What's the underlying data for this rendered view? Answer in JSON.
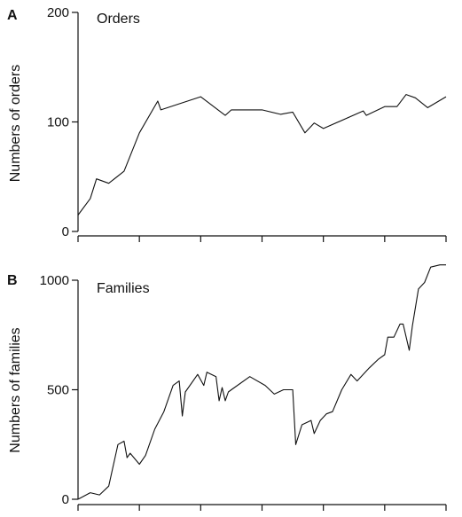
{
  "chart_data": [
    {
      "type": "line",
      "panel": "A",
      "title": "Orders",
      "xlabel": "",
      "ylabel": "Numbers of orders",
      "ylim": [
        0,
        200
      ],
      "yticks": [
        0,
        100,
        200
      ],
      "xticks": [
        0,
        1,
        2,
        3,
        4,
        5,
        6,
        7,
        8,
        9,
        10,
        11,
        12
      ],
      "xlim": [
        0,
        12
      ],
      "grid": false,
      "series": [
        {
          "x": [
            0,
            0.4,
            0.6,
            1.0,
            1.5,
            2.0,
            2.6,
            2.7,
            4.0,
            4.8,
            5.0,
            6.0,
            6.6,
            7.0,
            7.4,
            7.7,
            8.0,
            9.3,
            9.4,
            10.0,
            10.4,
            10.7,
            11.0,
            11.4,
            12.0
          ],
          "y": [
            15,
            30,
            48,
            44,
            55,
            90,
            119,
            111,
            123,
            106,
            111,
            111,
            107,
            109,
            90,
            99,
            94,
            110,
            106,
            114,
            114,
            125,
            122,
            113,
            123
          ]
        }
      ]
    },
    {
      "type": "line",
      "panel": "B",
      "title": "Families",
      "xlabel": "",
      "ylabel": "Numbers of families",
      "ylim": [
        0,
        1000
      ],
      "yticks": [
        0,
        500,
        1000
      ],
      "xticks": [
        0,
        1,
        2,
        3,
        4,
        5,
        6,
        7,
        8,
        9,
        10,
        11,
        12
      ],
      "xlim": [
        0,
        12
      ],
      "grid": false,
      "series": [
        {
          "x": [
            0,
            0.4,
            0.7,
            1.0,
            1.3,
            1.5,
            1.6,
            1.7,
            2.0,
            2.2,
            2.5,
            2.8,
            3.1,
            3.3,
            3.4,
            3.5,
            3.9,
            4.1,
            4.2,
            4.5,
            4.6,
            4.7,
            4.8,
            4.9,
            5.0,
            5.6,
            6.1,
            6.4,
            6.7,
            6.8,
            7.0,
            7.1,
            7.3,
            7.6,
            7.7,
            7.9,
            8.1,
            8.3,
            8.6,
            8.9,
            9.1,
            9.5,
            9.8,
            10.0,
            10.1,
            10.3,
            10.5,
            10.6,
            10.8,
            10.9,
            11.1,
            11.3,
            11.5,
            11.8,
            12.0
          ],
          "y": [
            0,
            30,
            20,
            60,
            250,
            265,
            190,
            210,
            160,
            200,
            320,
            400,
            520,
            540,
            380,
            490,
            570,
            520,
            580,
            560,
            450,
            510,
            450,
            490,
            500,
            560,
            520,
            480,
            500,
            500,
            500,
            250,
            340,
            360,
            300,
            360,
            390,
            400,
            500,
            570,
            540,
            600,
            640,
            660,
            740,
            740,
            800,
            800,
            680,
            790,
            960,
            990,
            1060,
            1070,
            1070
          ]
        }
      ]
    }
  ]
}
